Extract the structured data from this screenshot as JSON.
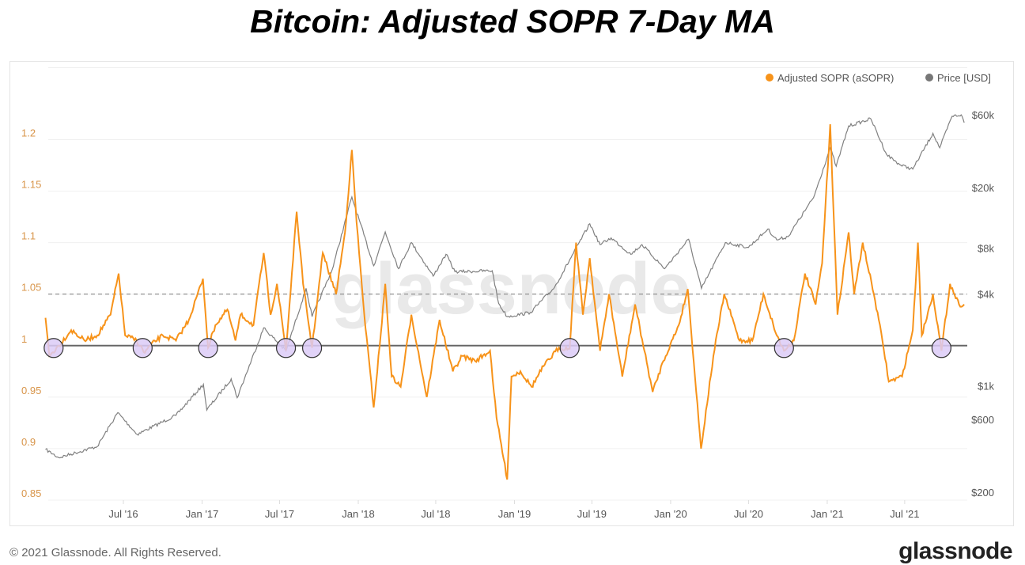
{
  "title": "Bitcoin: Adjusted SOPR 7-Day MA",
  "footer": {
    "copyright": "© 2021 Glassnode. All Rights Reserved.",
    "logo": "glassnode"
  },
  "watermark": "glassnode",
  "chart_data": {
    "type": "line",
    "title": "Bitcoin: Adjusted SOPR 7-Day MA",
    "legend": {
      "placement": "top-right",
      "entries": [
        "Adjusted SOPR (aSOPR)",
        "Price [USD]"
      ]
    },
    "colors": {
      "asopr": "#f7931a",
      "price": "#808080",
      "highlight_fill": "#dccbf7",
      "baseline": "#666666"
    },
    "x_ticks": [
      "Jul '16",
      "Jan '17",
      "Jul '17",
      "Jan '18",
      "Jul '18",
      "Jan '19",
      "Jul '19",
      "Jan '20",
      "Jul '20",
      "Jan '21",
      "Jul '21"
    ],
    "x_tick_dates": [
      "2016-07-01",
      "2017-01-01",
      "2017-07-01",
      "2018-01-01",
      "2018-07-01",
      "2019-01-01",
      "2019-07-01",
      "2020-01-01",
      "2020-07-01",
      "2021-01-01",
      "2021-07-01"
    ],
    "xlim": [
      "2016-01-01",
      "2021-11-17"
    ],
    "y_left": {
      "ticks": [
        "0.85",
        "0.9",
        "0.95",
        "1",
        "1.05",
        "1.1",
        "1.15",
        "1.2"
      ],
      "values": [
        0.85,
        0.9,
        0.95,
        1,
        1.05,
        1.1,
        1.15,
        1.2
      ],
      "ylim": [
        0.85,
        1.2
      ]
    },
    "y_right": {
      "scale": "log",
      "ticks": [
        "$200",
        "$600",
        "$1k",
        "$4k",
        "$8k",
        "$20k",
        "$60k"
      ],
      "values": [
        200,
        600,
        1000,
        4000,
        8000,
        20000,
        60000
      ],
      "ylim": [
        200,
        60000
      ]
    },
    "reference_lines": [
      {
        "y": 1.0,
        "style": "solid"
      },
      {
        "y": 1.05,
        "style": "dashed"
      }
    ],
    "highlighted_dates": [
      "2016-01-20",
      "2016-08-15",
      "2017-01-15",
      "2017-07-16",
      "2017-09-15",
      "2019-05-10",
      "2020-09-22",
      "2021-09-25"
    ],
    "series": [
      {
        "name": "Adjusted SOPR (aSOPR)",
        "axis": "left",
        "points": [
          [
            "2016-01-01",
            1.027
          ],
          [
            "2016-01-10",
            0.99
          ],
          [
            "2016-02-01",
            1.0
          ],
          [
            "2016-03-01",
            1.015
          ],
          [
            "2016-04-01",
            1.005
          ],
          [
            "2016-05-01",
            1.01
          ],
          [
            "2016-06-01",
            1.03
          ],
          [
            "2016-06-20",
            1.07
          ],
          [
            "2016-07-05",
            1.01
          ],
          [
            "2016-08-01",
            1.005
          ],
          [
            "2016-08-20",
            0.993
          ],
          [
            "2016-09-01",
            1.0
          ],
          [
            "2016-10-01",
            1.01
          ],
          [
            "2016-11-01",
            1.005
          ],
          [
            "2016-12-01",
            1.025
          ],
          [
            "2017-01-03",
            1.065
          ],
          [
            "2017-01-15",
            0.998
          ],
          [
            "2017-02-01",
            1.02
          ],
          [
            "2017-03-01",
            1.035
          ],
          [
            "2017-03-20",
            1.005
          ],
          [
            "2017-04-01",
            1.03
          ],
          [
            "2017-05-01",
            1.02
          ],
          [
            "2017-05-25",
            1.09
          ],
          [
            "2017-06-10",
            1.03
          ],
          [
            "2017-06-25",
            1.06
          ],
          [
            "2017-07-16",
            0.995
          ],
          [
            "2017-08-10",
            1.13
          ],
          [
            "2017-08-25",
            1.06
          ],
          [
            "2017-09-15",
            0.998
          ],
          [
            "2017-10-10",
            1.09
          ],
          [
            "2017-11-10",
            1.05
          ],
          [
            "2017-12-01",
            1.11
          ],
          [
            "2017-12-17",
            1.19
          ],
          [
            "2017-12-28",
            1.12
          ],
          [
            "2018-01-15",
            1.03
          ],
          [
            "2018-02-06",
            0.94
          ],
          [
            "2018-02-20",
            1.0
          ],
          [
            "2018-03-05",
            1.06
          ],
          [
            "2018-03-20",
            0.97
          ],
          [
            "2018-04-10",
            0.96
          ],
          [
            "2018-05-05",
            1.03
          ],
          [
            "2018-06-10",
            0.95
          ],
          [
            "2018-07-10",
            1.025
          ],
          [
            "2018-08-10",
            0.975
          ],
          [
            "2018-09-01",
            0.99
          ],
          [
            "2018-10-01",
            0.985
          ],
          [
            "2018-11-05",
            0.995
          ],
          [
            "2018-11-20",
            0.93
          ],
          [
            "2018-12-15",
            0.87
          ],
          [
            "2018-12-25",
            0.97
          ],
          [
            "2019-01-15",
            0.975
          ],
          [
            "2019-02-10",
            0.96
          ],
          [
            "2019-03-10",
            0.98
          ],
          [
            "2019-04-15",
            0.998
          ],
          [
            "2019-05-10",
            0.997
          ],
          [
            "2019-05-25",
            1.1
          ],
          [
            "2019-06-10",
            1.03
          ],
          [
            "2019-06-26",
            1.085
          ],
          [
            "2019-07-20",
            0.995
          ],
          [
            "2019-08-10",
            1.05
          ],
          [
            "2019-09-10",
            0.97
          ],
          [
            "2019-10-10",
            1.04
          ],
          [
            "2019-11-20",
            0.955
          ],
          [
            "2019-12-15",
            0.985
          ],
          [
            "2020-01-20",
            1.02
          ],
          [
            "2020-02-10",
            1.055
          ],
          [
            "2020-03-12",
            0.9
          ],
          [
            "2020-04-10",
            0.99
          ],
          [
            "2020-05-05",
            1.05
          ],
          [
            "2020-06-10",
            1.005
          ],
          [
            "2020-07-10",
            1.005
          ],
          [
            "2020-08-05",
            1.05
          ],
          [
            "2020-09-05",
            1.01
          ],
          [
            "2020-09-22",
            0.995
          ],
          [
            "2020-10-15",
            1.005
          ],
          [
            "2020-11-10",
            1.07
          ],
          [
            "2020-12-05",
            1.04
          ],
          [
            "2020-12-20",
            1.08
          ],
          [
            "2021-01-08",
            1.215
          ],
          [
            "2021-01-25",
            1.03
          ],
          [
            "2021-02-20",
            1.11
          ],
          [
            "2021-03-05",
            1.05
          ],
          [
            "2021-03-25",
            1.1
          ],
          [
            "2021-04-20",
            1.05
          ],
          [
            "2021-05-10",
            1.005
          ],
          [
            "2021-05-25",
            0.965
          ],
          [
            "2021-06-25",
            0.97
          ],
          [
            "2021-07-20",
            1.015
          ],
          [
            "2021-08-01",
            1.1
          ],
          [
            "2021-08-10",
            1.01
          ],
          [
            "2021-09-05",
            1.05
          ],
          [
            "2021-09-25",
            0.995
          ],
          [
            "2021-10-15",
            1.06
          ],
          [
            "2021-11-05",
            1.04
          ],
          [
            "2021-11-17",
            1.04
          ]
        ]
      },
      {
        "name": "Price [USD]",
        "axis": "right",
        "points": [
          [
            "2016-01-01",
            430
          ],
          [
            "2016-02-01",
            380
          ],
          [
            "2016-05-01",
            450
          ],
          [
            "2016-06-18",
            750
          ],
          [
            "2016-08-02",
            540
          ],
          [
            "2016-11-01",
            720
          ],
          [
            "2017-01-04",
            1150
          ],
          [
            "2017-01-12",
            780
          ],
          [
            "2017-03-10",
            1250
          ],
          [
            "2017-03-24",
            940
          ],
          [
            "2017-05-25",
            2700
          ],
          [
            "2017-07-16",
            1900
          ],
          [
            "2017-09-01",
            4900
          ],
          [
            "2017-09-15",
            3200
          ],
          [
            "2017-11-01",
            6500
          ],
          [
            "2017-12-17",
            19500
          ],
          [
            "2018-02-06",
            6900
          ],
          [
            "2018-03-05",
            11500
          ],
          [
            "2018-04-05",
            6600
          ],
          [
            "2018-05-05",
            9800
          ],
          [
            "2018-06-25",
            5900
          ],
          [
            "2018-07-25",
            8200
          ],
          [
            "2018-08-15",
            6300
          ],
          [
            "2018-11-10",
            6400
          ],
          [
            "2018-11-25",
            3900
          ],
          [
            "2018-12-15",
            3200
          ],
          [
            "2019-02-07",
            3400
          ],
          [
            "2019-04-05",
            5000
          ],
          [
            "2019-06-26",
            13000
          ],
          [
            "2019-07-20",
            9500
          ],
          [
            "2019-08-15",
            10500
          ],
          [
            "2019-09-30",
            8200
          ],
          [
            "2019-10-26",
            9500
          ],
          [
            "2019-12-18",
            6600
          ],
          [
            "2020-02-12",
            10300
          ],
          [
            "2020-03-13",
            4900
          ],
          [
            "2020-05-08",
            9800
          ],
          [
            "2020-07-01",
            9100
          ],
          [
            "2020-08-15",
            12000
          ],
          [
            "2020-09-05",
            10200
          ],
          [
            "2020-10-01",
            10700
          ],
          [
            "2020-11-30",
            19300
          ],
          [
            "2021-01-08",
            41000
          ],
          [
            "2021-01-22",
            31000
          ],
          [
            "2021-02-20",
            57000
          ],
          [
            "2021-04-13",
            63500
          ],
          [
            "2021-05-20",
            37000
          ],
          [
            "2021-06-22",
            31500
          ],
          [
            "2021-07-20",
            29700
          ],
          [
            "2021-09-05",
            51000
          ],
          [
            "2021-09-21",
            41000
          ],
          [
            "2021-10-20",
            66000
          ],
          [
            "2021-11-10",
            67500
          ],
          [
            "2021-11-17",
            60000
          ]
        ]
      }
    ]
  }
}
